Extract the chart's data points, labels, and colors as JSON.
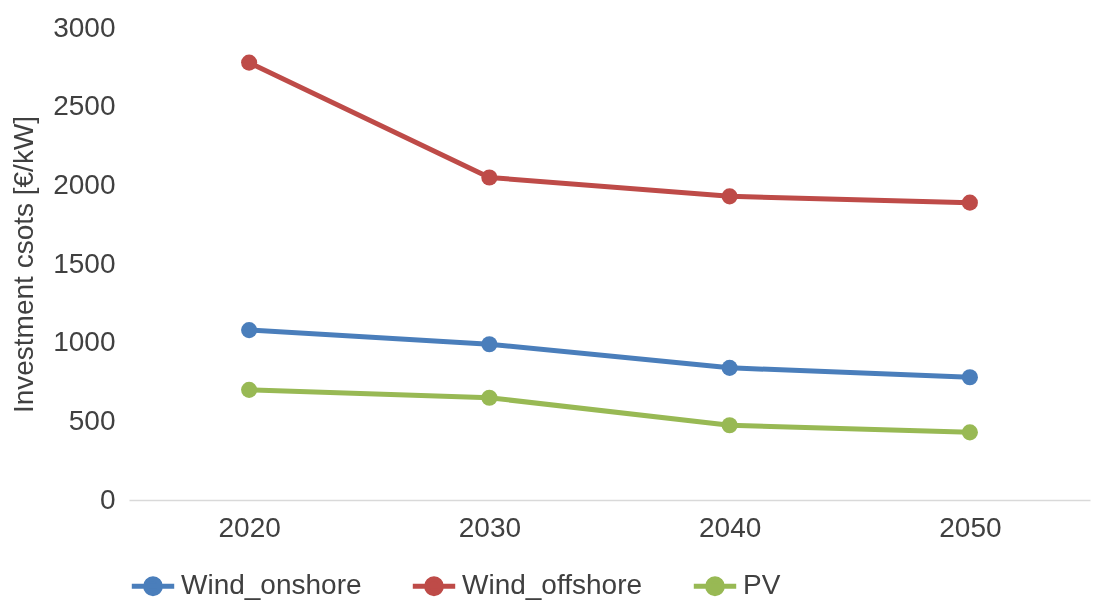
{
  "chart_data": {
    "type": "line",
    "ylabel": "Investment csots [€/kW]",
    "categories": [
      "2020",
      "2030",
      "2040",
      "2050"
    ],
    "series": [
      {
        "name": "Wind_onshore",
        "color": "#4a7ebb",
        "values": [
          1080,
          990,
          840,
          780
        ]
      },
      {
        "name": "Wind_offshore",
        "color": "#be4b48",
        "values": [
          2780,
          2050,
          1930,
          1890
        ]
      },
      {
        "name": "PV",
        "color": "#98b954",
        "values": [
          700,
          650,
          475,
          430
        ]
      }
    ],
    "ylim": [
      0,
      3000
    ],
    "yticks": [
      0,
      500,
      1000,
      1500,
      2000,
      2500,
      3000
    ],
    "grid": false,
    "legend": "bottom",
    "marker": "circle",
    "line_style": "solid"
  }
}
